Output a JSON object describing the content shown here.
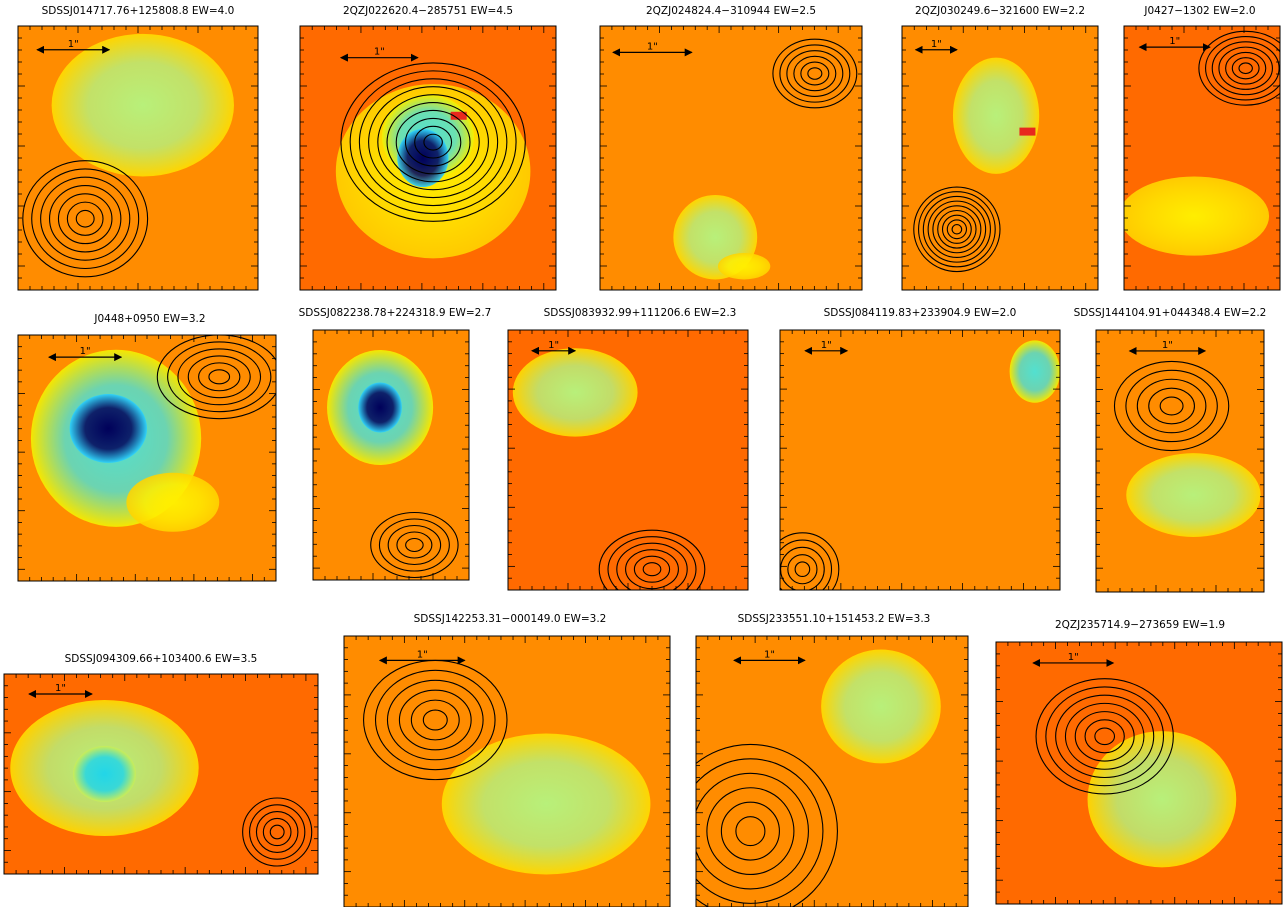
{
  "figure": {
    "background": "#ffffff",
    "colors": {
      "sky": "#ff6a00",
      "sky_alt": "#ff8c00",
      "contour": "#000000",
      "frame": "#000000"
    },
    "scale_bar_label": "1\"",
    "panels": [
      {
        "id": "p1",
        "title": "SDSSJ014717.76+125808.8  EW=4.0"
      },
      {
        "id": "p2",
        "title": "2QZJ022620.4−285751  EW=4.5"
      },
      {
        "id": "p3",
        "title": "2QZJ024824.4−310944  EW=2.5"
      },
      {
        "id": "p4",
        "title": "2QZJ030249.6−321600  EW=2.2"
      },
      {
        "id": "p5",
        "title": "J0427−1302  EW=2.0"
      },
      {
        "id": "p6",
        "title": "J0448+0950  EW=3.2"
      },
      {
        "id": "p7",
        "title": "SDSSJ082238.78+224318.9  EW=2.7"
      },
      {
        "id": "p8",
        "title": "SDSSJ083932.99+111206.6  EW=2.3"
      },
      {
        "id": "p9",
        "title": "SDSSJ084119.83+233904.9  EW=2.0"
      },
      {
        "id": "p10",
        "title": "SDSSJ144104.91+044348.4  EW=2.2"
      },
      {
        "id": "p11",
        "title": "SDSSJ094309.66+103400.6  EW=3.5"
      },
      {
        "id": "p12",
        "title": "SDSSJ142253.31−000149.0  EW=3.2"
      },
      {
        "id": "p13",
        "title": "SDSSJ233551.10+151453.2  EW=3.3"
      },
      {
        "id": "p14",
        "title": "2QZJ235714.9−273659  EW=1.9"
      }
    ]
  }
}
